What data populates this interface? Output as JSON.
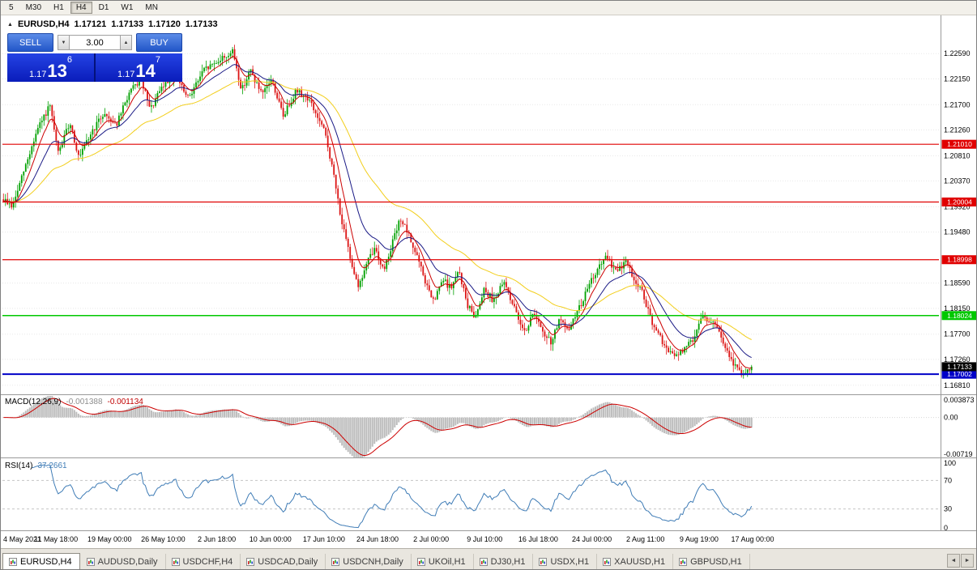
{
  "toolbar": {
    "periods": [
      "5",
      "M30",
      "H1",
      "H4",
      "D1",
      "W1",
      "MN"
    ],
    "active": "H4"
  },
  "header": {
    "symbol": "EURUSD,H4",
    "open": "1.17121",
    "high": "1.17133",
    "low": "1.17120",
    "close": "1.17133"
  },
  "trade_panel": {
    "sell_label": "SELL",
    "buy_label": "BUY",
    "volume": "3.00",
    "sell_price": {
      "prefix": "1.17",
      "big": "13",
      "pip": "6"
    },
    "buy_price": {
      "prefix": "1.17",
      "big": "14",
      "pip": "7"
    }
  },
  "icons": {
    "collapse": "▲",
    "volume_down": "▼",
    "volume_up": "▲",
    "scroll_left": "◄",
    "scroll_right": "►"
  },
  "chart_data": {
    "type": "candlestick",
    "symbol": "EURUSD",
    "timeframe": "H4",
    "last_close": 1.17133,
    "y_axis": {
      "price_max": 1.232,
      "price_min": 1.1668,
      "ticks": [
        "1.22590",
        "1.22150",
        "1.21700",
        "1.21260",
        "1.20810",
        "1.20370",
        "1.19920",
        "1.19480",
        "1.18590",
        "1.18150",
        "1.17700",
        "1.17260",
        "1.16810"
      ]
    },
    "price_path": [
      [
        0.0,
        1.2005
      ],
      [
        0.012,
        1.1992
      ],
      [
        0.025,
        1.2045
      ],
      [
        0.045,
        1.2125
      ],
      [
        0.062,
        1.2168
      ],
      [
        0.073,
        1.2085
      ],
      [
        0.089,
        1.214
      ],
      [
        0.101,
        1.2075
      ],
      [
        0.117,
        1.212
      ],
      [
        0.134,
        1.2155
      ],
      [
        0.151,
        1.2135
      ],
      [
        0.168,
        1.219
      ],
      [
        0.184,
        1.2215
      ],
      [
        0.196,
        1.216
      ],
      [
        0.212,
        1.22
      ],
      [
        0.229,
        1.2225
      ],
      [
        0.246,
        1.218
      ],
      [
        0.268,
        1.223
      ],
      [
        0.291,
        1.225
      ],
      [
        0.307,
        1.2262
      ],
      [
        0.318,
        1.2195
      ],
      [
        0.33,
        1.223
      ],
      [
        0.346,
        1.2185
      ],
      [
        0.358,
        1.2215
      ],
      [
        0.374,
        1.215
      ],
      [
        0.391,
        1.2195
      ],
      [
        0.408,
        1.218
      ],
      [
        0.43,
        1.212
      ],
      [
        0.441,
        1.205
      ],
      [
        0.453,
        1.196
      ],
      [
        0.464,
        1.19
      ],
      [
        0.475,
        1.1852
      ],
      [
        0.486,
        1.1895
      ],
      [
        0.497,
        1.192
      ],
      [
        0.508,
        1.188
      ],
      [
        0.52,
        1.193
      ],
      [
        0.531,
        1.1972
      ],
      [
        0.542,
        1.194
      ],
      [
        0.553,
        1.1905
      ],
      [
        0.564,
        1.186
      ],
      [
        0.575,
        1.1825
      ],
      [
        0.587,
        1.1865
      ],
      [
        0.598,
        1.185
      ],
      [
        0.609,
        1.188
      ],
      [
        0.62,
        1.182
      ],
      [
        0.631,
        1.18
      ],
      [
        0.642,
        1.185
      ],
      [
        0.654,
        1.183
      ],
      [
        0.67,
        1.186
      ],
      [
        0.687,
        1.18
      ],
      [
        0.698,
        1.1775
      ],
      [
        0.709,
        1.181
      ],
      [
        0.721,
        1.177
      ],
      [
        0.732,
        1.1756
      ],
      [
        0.743,
        1.1795
      ],
      [
        0.754,
        1.1775
      ],
      [
        0.771,
        1.182
      ],
      [
        0.788,
        1.187
      ],
      [
        0.804,
        1.1903
      ],
      [
        0.821,
        1.188
      ],
      [
        0.832,
        1.1898
      ],
      [
        0.843,
        1.1865
      ],
      [
        0.855,
        1.184
      ],
      [
        0.866,
        1.179
      ],
      [
        0.877,
        1.1765
      ],
      [
        0.888,
        1.174
      ],
      [
        0.899,
        1.1731
      ],
      [
        0.911,
        1.1745
      ],
      [
        0.922,
        1.1762
      ],
      [
        0.933,
        1.1802
      ],
      [
        0.944,
        1.1793
      ],
      [
        0.955,
        1.178
      ],
      [
        0.966,
        1.174
      ],
      [
        0.977,
        1.1716
      ],
      [
        0.988,
        1.17
      ],
      [
        1.0,
        1.17133
      ]
    ],
    "moving_averages": [
      {
        "period": 8,
        "color": "#CC0000"
      },
      {
        "period": 21,
        "color": "#191985"
      },
      {
        "period": 55,
        "color": "#F2CE1B"
      }
    ],
    "levels": [
      {
        "price": 1.2101,
        "label": "1.21010",
        "color": "#E00000",
        "width": 1.2
      },
      {
        "price": 1.20004,
        "label": "1.20004",
        "color": "#E00000",
        "width": 1.2
      },
      {
        "price": 1.18998,
        "label": "1.18998",
        "color": "#E00000",
        "width": 1.2
      },
      {
        "price": 1.18024,
        "label": "1.18024",
        "color": "#00C800",
        "width": 1.5
      },
      {
        "price": 1.17002,
        "label": "1.17002",
        "color": "#0000C8",
        "width": 2
      }
    ],
    "current_price": {
      "price": 1.17133,
      "label": "1.17133",
      "color": "#000000"
    },
    "indicators": {
      "macd": {
        "label": "MACD(12,26,9)",
        "value_main": "-0.001388",
        "value_signal": "-0.001134",
        "params": [
          12,
          26,
          9
        ],
        "axis_max": 0.003873,
        "axis_min": -0.00719,
        "axis_labels": [
          "0.003873",
          "0.00",
          "-0.00719"
        ],
        "histogram_color": "#BCBCBC",
        "signal_color": "#CC0000"
      },
      "rsi": {
        "label": "RSI(14)",
        "value_text": "37.2661",
        "period": 14,
        "axis_labels": [
          "100",
          "70",
          "30",
          "0"
        ],
        "guide_levels": [
          70,
          30
        ],
        "line_color": "#3F7CB6",
        "range": [
          0,
          100
        ]
      }
    },
    "x_labels": [
      "4 May 2021",
      "11 May 18:00",
      "19 May 00:00",
      "26 May 10:00",
      "2 Jun 18:00",
      "10 Jun 00:00",
      "17 Jun 10:00",
      "24 Jun 18:00",
      "2 Jul 00:00",
      "9 Jul 10:00",
      "16 Jul 18:00",
      "24 Jul 00:00",
      "2 Aug 11:00",
      "9 Aug 19:00",
      "17 Aug 00:00"
    ]
  },
  "tabs": {
    "active_index": 0,
    "items": [
      "EURUSD,H4",
      "AUDUSD,Daily",
      "USDCHF,H4",
      "USDCAD,Daily",
      "USDCNH,Daily",
      "UKOil,H1",
      "DJ30,H1",
      "USDX,H1",
      "XAUUSD,H1",
      "GBPUSD,H1"
    ]
  },
  "colors": {
    "candle_up": "#00A000",
    "candle_down": "#DC1414",
    "grid": "#E8E8E8",
    "panel_separator": "#9A9A9A"
  }
}
